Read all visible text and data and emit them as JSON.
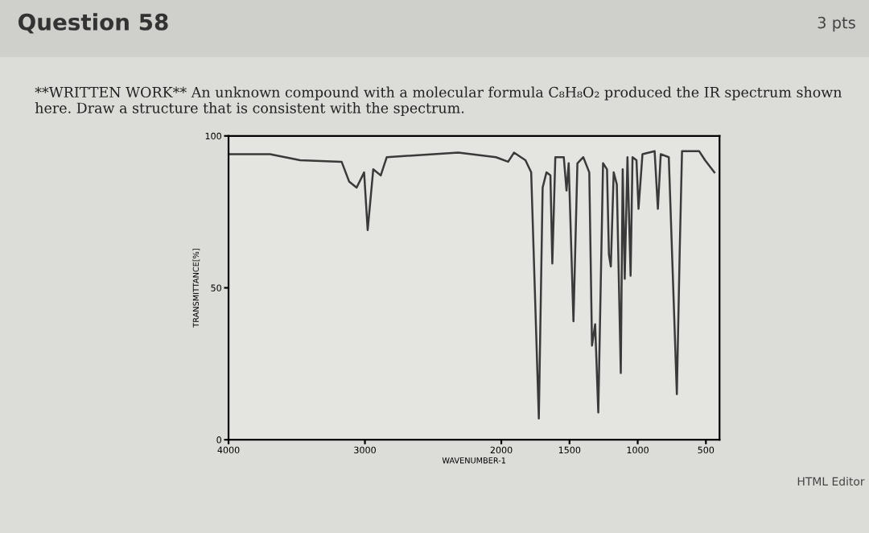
{
  "chart_data": {
    "type": "line",
    "title": "Question 58",
    "subtitle": "**WRITTEN WORK** An unknown compound with a molecular formula C₈H₈O₂ produced the IR spectrum shown here. Draw a structure that is consistent with the spectrum.",
    "annotations": [
      "3 pts",
      "HTML Editor"
    ],
    "xlabel": "WAVENUMBER-1",
    "ylabel": "TRANSMITTANCE[%]",
    "x": [
      4000,
      3696,
      3475,
      3171,
      3116,
      3061,
      3006,
      2980,
      2939,
      2884,
      2840,
      2315,
      2039,
      1950,
      1907,
      1823,
      1781,
      1725,
      1697,
      1669,
      1640,
      1626,
      1604,
      1542,
      1522,
      1506,
      1471,
      1442,
      1399,
      1355,
      1335,
      1312,
      1289,
      1254,
      1225,
      1211,
      1197,
      1176,
      1153,
      1124,
      1110,
      1095,
      1075,
      1052,
      1038,
      1009,
      994,
      965,
      876,
      852,
      831,
      772,
      713,
      692,
      675,
      550,
      506,
      438
    ],
    "series": [
      {
        "color": "#3a3a3a",
        "values": [
          94,
          94,
          92,
          91.5,
          85,
          83,
          88,
          69,
          89,
          87,
          93,
          94.5,
          93,
          91.5,
          94.5,
          92,
          88,
          7,
          83,
          88,
          87,
          58,
          93,
          93,
          82,
          91,
          39,
          91,
          93,
          88,
          31,
          38,
          9,
          91,
          89,
          61,
          57,
          88,
          84,
          22,
          89,
          53,
          93,
          54,
          93,
          92,
          76,
          94,
          95,
          76,
          94,
          93,
          15,
          62,
          95,
          95,
          92,
          88
        ]
      }
    ],
    "xlim": [
      4000,
      400
    ],
    "xticks": [
      4000,
      3000,
      2000,
      1500,
      1000,
      500
    ],
    "ylim": [
      0,
      100
    ],
    "yticks": [
      0,
      50,
      100
    ],
    "grid": false,
    "legend": false,
    "marker": "none",
    "line_style": "solid"
  }
}
